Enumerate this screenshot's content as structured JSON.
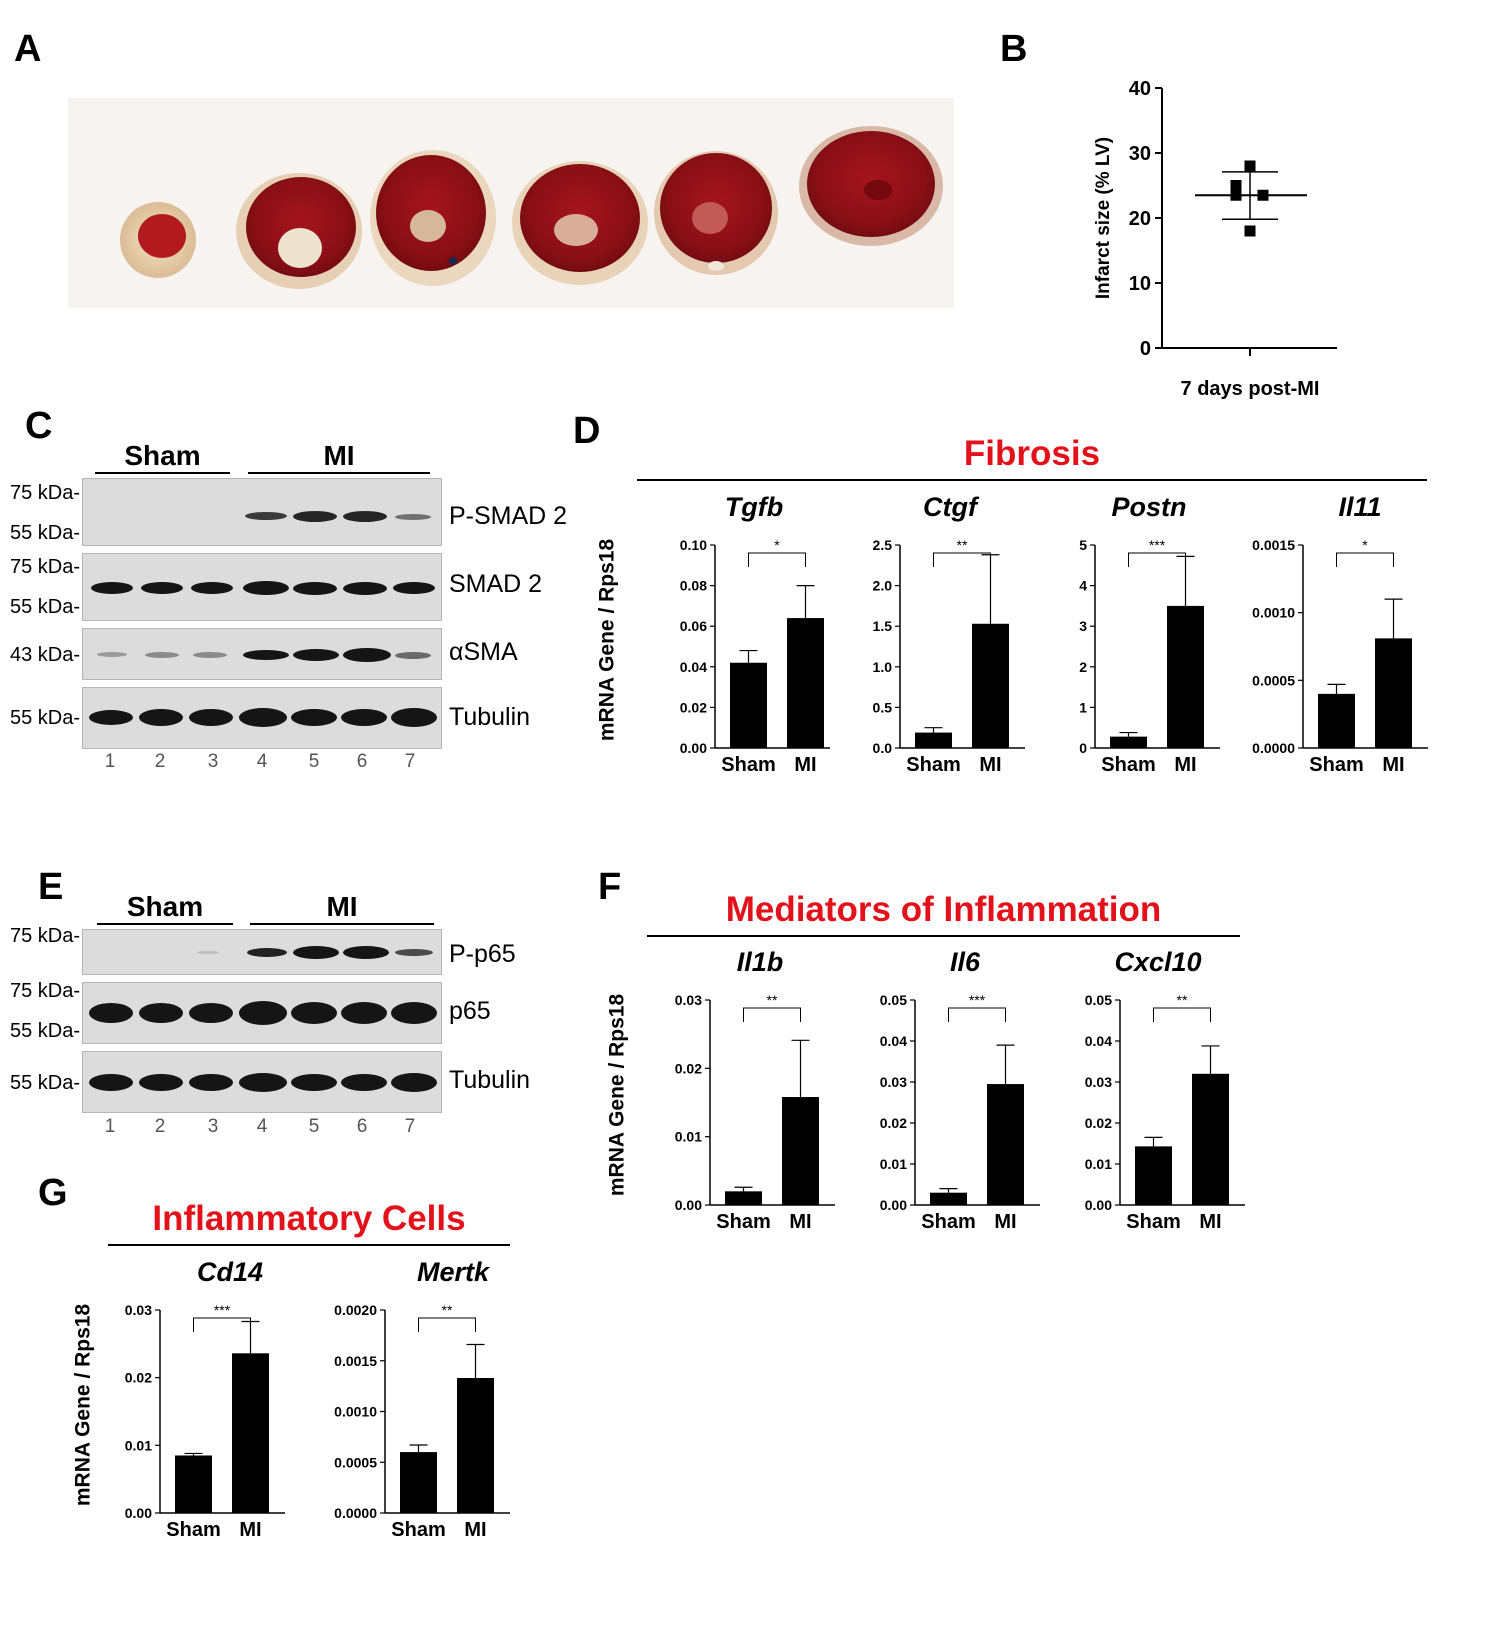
{
  "panels": {
    "A": {
      "label": "A"
    },
    "B": {
      "label": "B"
    },
    "C": {
      "label": "C"
    },
    "D": {
      "label": "D"
    },
    "E": {
      "label": "E"
    },
    "F": {
      "label": "F"
    },
    "G": {
      "label": "G"
    }
  },
  "panel_b": {
    "ylabel": "Infarct size (% LV)",
    "xlabel": "7 days post-MI"
  },
  "blot_c": {
    "groups": [
      "Sham",
      "MI"
    ],
    "lanes": [
      "1",
      "2",
      "3",
      "4",
      "5",
      "6",
      "7"
    ],
    "rows": [
      {
        "protein": "P-SMAD 2",
        "mw": [
          "75 kDa-",
          "55 kDa-"
        ]
      },
      {
        "protein": "SMAD 2",
        "mw": [
          "75 kDa-",
          "55 kDa-"
        ]
      },
      {
        "protein": "αSMA",
        "mw": [
          "43 kDa-"
        ]
      },
      {
        "protein": "Tubulin",
        "mw": [
          "55 kDa-"
        ]
      }
    ]
  },
  "blot_e": {
    "groups": [
      "Sham",
      "MI"
    ],
    "lanes": [
      "1",
      "2",
      "3",
      "4",
      "5",
      "6",
      "7"
    ],
    "rows": [
      {
        "protein": "P-p65",
        "mw": [
          "75 kDa-"
        ]
      },
      {
        "protein": "p65",
        "mw": [
          "75 kDa-",
          "55 kDa-"
        ]
      },
      {
        "protein": "Tubulin",
        "mw": [
          "55 kDa-"
        ]
      }
    ]
  },
  "section_d": {
    "title": "Fibrosis",
    "ylabel": "mRNA Gene / Rps18"
  },
  "section_f": {
    "title": "Mediators of Inflammation",
    "ylabel": "mRNA Gene / Rps18"
  },
  "section_g": {
    "title": "Inflammatory Cells",
    "ylabel": "mRNA Gene / Rps18"
  },
  "chart_data": [
    {
      "id": "infarct",
      "type": "scatter",
      "ylabel": "Infarct size (% LV)",
      "xlabel": "7 days post-MI",
      "ylim": [
        0,
        40
      ],
      "yticks": [
        "0",
        "10",
        "20",
        "30",
        "40"
      ],
      "points": [
        28,
        25,
        23.5,
        23.5,
        18
      ],
      "mean": 23.5,
      "sd": [
        19.8,
        27.1
      ]
    },
    {
      "id": "tgfb",
      "type": "bar",
      "title": "Tgfb",
      "categories": [
        "Sham",
        "MI"
      ],
      "values": [
        0.042,
        0.064
      ],
      "errors": [
        0.006,
        0.016
      ],
      "ylim": [
        0,
        0.1
      ],
      "yticks": [
        "0.00",
        "0.02",
        "0.04",
        "0.06",
        "0.08",
        "0.10"
      ],
      "sig": "*"
    },
    {
      "id": "ctgf",
      "type": "bar",
      "title": "Ctgf",
      "categories": [
        "Sham",
        "MI"
      ],
      "values": [
        0.19,
        1.53
      ],
      "errors": [
        0.06,
        0.85
      ],
      "ylim": [
        0,
        2.5
      ],
      "yticks": [
        "0.0",
        "0.5",
        "1.0",
        "1.5",
        "2.0",
        "2.5"
      ],
      "sig": "**"
    },
    {
      "id": "postn",
      "type": "bar",
      "title": "Postn",
      "categories": [
        "Sham",
        "MI"
      ],
      "values": [
        0.28,
        3.5
      ],
      "errors": [
        0.1,
        1.22
      ],
      "ylim": [
        0,
        5
      ],
      "yticks": [
        "0",
        "1",
        "2",
        "3",
        "4",
        "5"
      ],
      "sig": "***"
    },
    {
      "id": "il11",
      "type": "bar",
      "title": "Il11",
      "categories": [
        "Sham",
        "MI"
      ],
      "values": [
        0.0004,
        0.00081
      ],
      "errors": [
        7e-05,
        0.00029
      ],
      "ylim": [
        0,
        0.0015
      ],
      "yticks": [
        "0.0000",
        "0.0005",
        "0.0010",
        "0.0015"
      ],
      "sig": "*"
    },
    {
      "id": "il1b",
      "type": "bar",
      "title": "Il1b",
      "categories": [
        "Sham",
        "MI"
      ],
      "values": [
        0.002,
        0.0158
      ],
      "errors": [
        0.0006,
        0.0083
      ],
      "ylim": [
        0,
        0.03
      ],
      "yticks": [
        "0.00",
        "0.01",
        "0.02",
        "0.03"
      ],
      "sig": "**"
    },
    {
      "id": "il6",
      "type": "bar",
      "title": "Il6",
      "categories": [
        "Sham",
        "MI"
      ],
      "values": [
        0.003,
        0.0295
      ],
      "errors": [
        0.001,
        0.0095
      ],
      "ylim": [
        0,
        0.05
      ],
      "yticks": [
        "0.00",
        "0.01",
        "0.02",
        "0.03",
        "0.04",
        "0.05"
      ],
      "sig": "***"
    },
    {
      "id": "cxcl10",
      "type": "bar",
      "title": "Cxcl10",
      "categories": [
        "Sham",
        "MI"
      ],
      "values": [
        0.0143,
        0.032
      ],
      "errors": [
        0.0022,
        0.0068
      ],
      "ylim": [
        0,
        0.05
      ],
      "yticks": [
        "0.00",
        "0.01",
        "0.02",
        "0.03",
        "0.04",
        "0.05"
      ],
      "sig": "**"
    },
    {
      "id": "cd14",
      "type": "bar",
      "title": "Cd14",
      "categories": [
        "Sham",
        "MI"
      ],
      "values": [
        0.0085,
        0.0236
      ],
      "errors": [
        0.0003,
        0.0047
      ],
      "ylim": [
        0,
        0.03
      ],
      "yticks": [
        "0.00",
        "0.01",
        "0.02",
        "0.03"
      ],
      "sig": "***"
    },
    {
      "id": "mertk",
      "type": "bar",
      "title": "Mertk",
      "categories": [
        "Sham",
        "MI"
      ],
      "values": [
        0.0006,
        0.00133
      ],
      "errors": [
        7e-05,
        0.00033
      ],
      "ylim": [
        0,
        0.002
      ],
      "yticks": [
        "0.0000",
        "0.0005",
        "0.0010",
        "0.0015",
        "0.0020"
      ],
      "sig": "**"
    }
  ]
}
